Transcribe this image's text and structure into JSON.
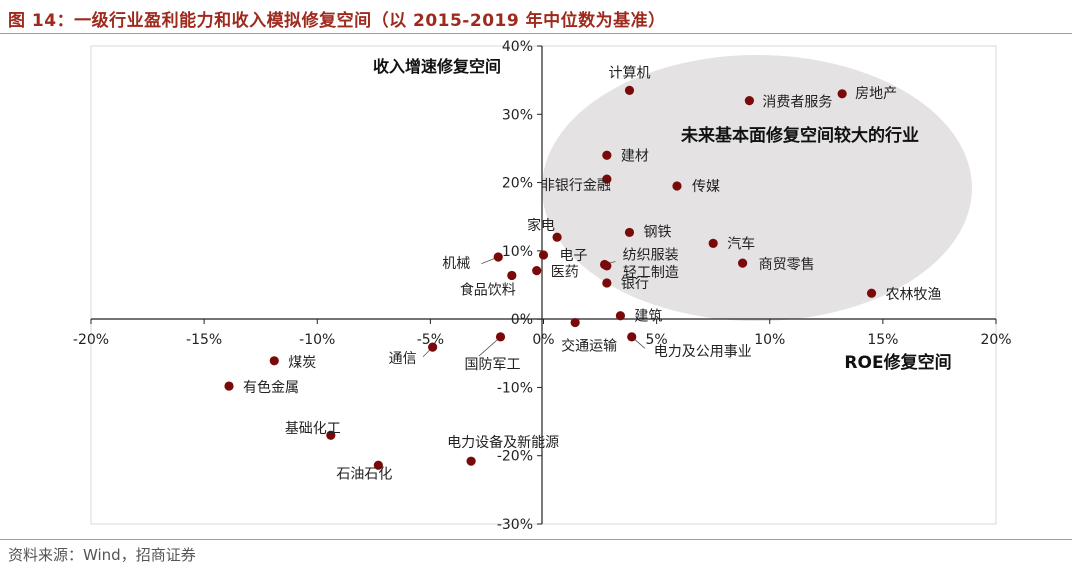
{
  "title": "图 14：一级行业盈利能力和收入模拟修复空间（以 2015-2019 年中位数为基准）",
  "source": "资料来源：Wind，招商证券",
  "colors": {
    "point": "#7a0a0a",
    "ellipse": "#e4e2e2",
    "title": "#9e2a1e"
  },
  "chart_data": {
    "type": "scatter",
    "xlabel": "ROE修复空间",
    "ylabel": "收入增速修复空间",
    "xlim": [
      -0.2,
      0.2
    ],
    "ylim": [
      -0.3,
      0.4
    ],
    "xticks": [
      -0.2,
      -0.15,
      -0.1,
      -0.05,
      0.0,
      0.05,
      0.1,
      0.15,
      0.2
    ],
    "yticks": [
      -0.3,
      -0.2,
      -0.1,
      0.0,
      0.1,
      0.2,
      0.3,
      0.4
    ],
    "xtick_labels": [
      "-20%",
      "-15%",
      "-10%",
      "-5%",
      "0%",
      "5%",
      "10%",
      "15%",
      "20%"
    ],
    "ytick_labels": [
      "-30%",
      "-20%",
      "-10%",
      "0%",
      "10%",
      "20%",
      "30%",
      "40%"
    ],
    "grid": false,
    "highlight_region": {
      "label": "未来基本面修复空间较大的行业"
    },
    "points": [
      {
        "label": "计算机",
        "x": 0.038,
        "y": 0.335
      },
      {
        "label": "消费者服务",
        "x": 0.091,
        "y": 0.32
      },
      {
        "label": "房地产",
        "x": 0.132,
        "y": 0.33
      },
      {
        "label": "建材",
        "x": 0.028,
        "y": 0.24
      },
      {
        "label": "非银行金融",
        "x": 0.028,
        "y": 0.205
      },
      {
        "label": "传媒",
        "x": 0.059,
        "y": 0.195
      },
      {
        "label": "家电",
        "x": 0.006,
        "y": 0.12
      },
      {
        "label": "钢铁",
        "x": 0.038,
        "y": 0.127
      },
      {
        "label": "汽车",
        "x": 0.075,
        "y": 0.111
      },
      {
        "label": "机械",
        "x": -0.02,
        "y": 0.091
      },
      {
        "label": "电子",
        "x": 0.0,
        "y": 0.094
      },
      {
        "label": "纺织服装",
        "x": 0.027,
        "y": 0.08
      },
      {
        "label": "轻工制造",
        "x": 0.028,
        "y": 0.078
      },
      {
        "label": "商贸零售",
        "x": 0.088,
        "y": 0.082
      },
      {
        "label": "医药",
        "x": -0.003,
        "y": 0.071
      },
      {
        "label": "食品饮料",
        "x": -0.014,
        "y": 0.064
      },
      {
        "label": "银行",
        "x": 0.028,
        "y": 0.053
      },
      {
        "label": "农林牧渔",
        "x": 0.145,
        "y": 0.038
      },
      {
        "label": "建筑",
        "x": 0.034,
        "y": 0.005
      },
      {
        "label": "交通运输",
        "x": 0.014,
        "y": -0.005
      },
      {
        "label": "电力及公用事业",
        "x": 0.039,
        "y": -0.026
      },
      {
        "label": "国防军工",
        "x": -0.019,
        "y": -0.026
      },
      {
        "label": "通信",
        "x": -0.049,
        "y": -0.041
      },
      {
        "label": "煤炭",
        "x": -0.119,
        "y": -0.061
      },
      {
        "label": "有色金属",
        "x": -0.139,
        "y": -0.098
      },
      {
        "label": "基础化工",
        "x": -0.094,
        "y": -0.17
      },
      {
        "label": "电力设备及新能源",
        "x": -0.032,
        "y": -0.208
      },
      {
        "label": "石油石化",
        "x": -0.073,
        "y": -0.214
      }
    ]
  }
}
